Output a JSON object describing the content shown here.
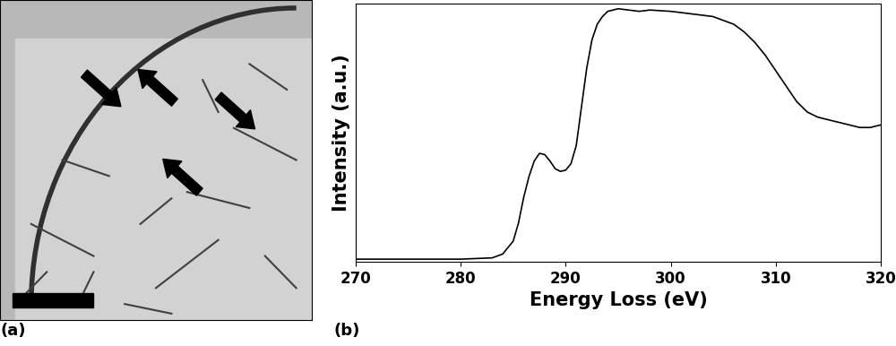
{
  "panel_labels": [
    "(a)",
    "(b)"
  ],
  "chart_data": {
    "type": "line",
    "x_label": "Energy Loss (eV)",
    "y_label": "Intensity (a.u.)",
    "x": [
      270,
      275,
      280,
      283,
      284,
      285,
      285.5,
      286,
      286.5,
      287,
      287.5,
      288,
      288.5,
      289,
      289.5,
      290,
      290.5,
      291,
      291.5,
      292,
      292.5,
      293,
      293.5,
      294,
      295,
      296,
      297,
      298,
      300,
      302,
      304,
      306,
      307,
      308,
      309,
      310,
      311,
      312,
      313,
      314,
      316,
      318,
      319,
      320
    ],
    "values": [
      0.01,
      0.01,
      0.01,
      0.015,
      0.03,
      0.08,
      0.15,
      0.25,
      0.33,
      0.39,
      0.42,
      0.415,
      0.39,
      0.36,
      0.35,
      0.355,
      0.38,
      0.45,
      0.6,
      0.75,
      0.86,
      0.92,
      0.95,
      0.97,
      0.98,
      0.975,
      0.97,
      0.975,
      0.97,
      0.96,
      0.95,
      0.92,
      0.89,
      0.85,
      0.8,
      0.74,
      0.68,
      0.62,
      0.58,
      0.56,
      0.54,
      0.52,
      0.52,
      0.53
    ],
    "color": "#000000",
    "xlim": [
      270,
      320
    ],
    "xticks": [
      270,
      280,
      290,
      300,
      310,
      320
    ],
    "ylim": [
      0,
      1
    ],
    "yticks": [],
    "tick_labels": "x"
  }
}
